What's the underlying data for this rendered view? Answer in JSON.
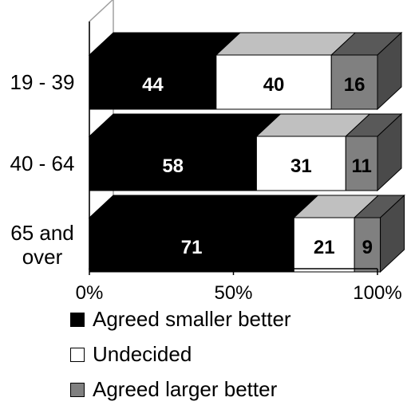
{
  "chart_data": {
    "type": "bar",
    "orientation": "horizontal",
    "stacked": "percent",
    "style": "3d",
    "categories": [
      "19 - 39",
      "40 - 64",
      "65 and over"
    ],
    "category_lines": [
      [
        "19 - 39"
      ],
      [
        "40 - 64"
      ],
      [
        "65 and",
        "over"
      ]
    ],
    "series": [
      {
        "name": "Agreed smaller better",
        "values": [
          44,
          58,
          71
        ],
        "color": "#000000",
        "top_color": "#000000",
        "side_color": "#000000",
        "label_color": "#ffffff"
      },
      {
        "name": "Undecided",
        "values": [
          40,
          31,
          21
        ],
        "color": "#ffffff",
        "top_color": "#c0c0c0",
        "side_color": "#ffffff",
        "label_color": "#000000"
      },
      {
        "name": "Agreed larger better",
        "values": [
          16,
          11,
          9
        ],
        "color": "#808080",
        "top_color": "#595959",
        "side_color": "#4a4a4a",
        "label_color": "#000000"
      }
    ],
    "x_ticks": [
      "0%",
      "50%",
      "100%"
    ],
    "xlim": [
      0,
      100
    ],
    "grid": false,
    "legend_position": "bottom"
  }
}
